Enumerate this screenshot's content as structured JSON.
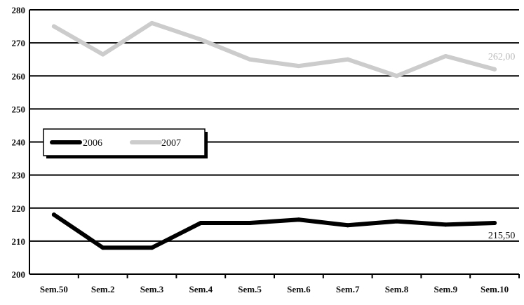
{
  "chart_data": {
    "type": "line",
    "categories": [
      "Sem.50",
      "Sem.2",
      "Sem.3",
      "Sem.4",
      "Sem.5",
      "Sem.6",
      "Sem.7",
      "Sem.8",
      "Sem.9",
      "Sem.10"
    ],
    "series": [
      {
        "name": "2006",
        "color": "#000000",
        "values": [
          218,
          208,
          208,
          215.5,
          215.5,
          216.5,
          214.8,
          216,
          215,
          215.5
        ],
        "end_label": "215,50"
      },
      {
        "name": "2007",
        "color": "#cccccc",
        "values": [
          275,
          266.5,
          276,
          271,
          265,
          263,
          265,
          260,
          266,
          262
        ],
        "end_label": "262,00"
      }
    ],
    "y_ticks": [
      "200",
      "210",
      "220",
      "230",
      "240",
      "250",
      "260",
      "270",
      "280"
    ],
    "ylim": [
      200,
      280
    ],
    "grid": "horizontal",
    "legend": "left-middle"
  }
}
